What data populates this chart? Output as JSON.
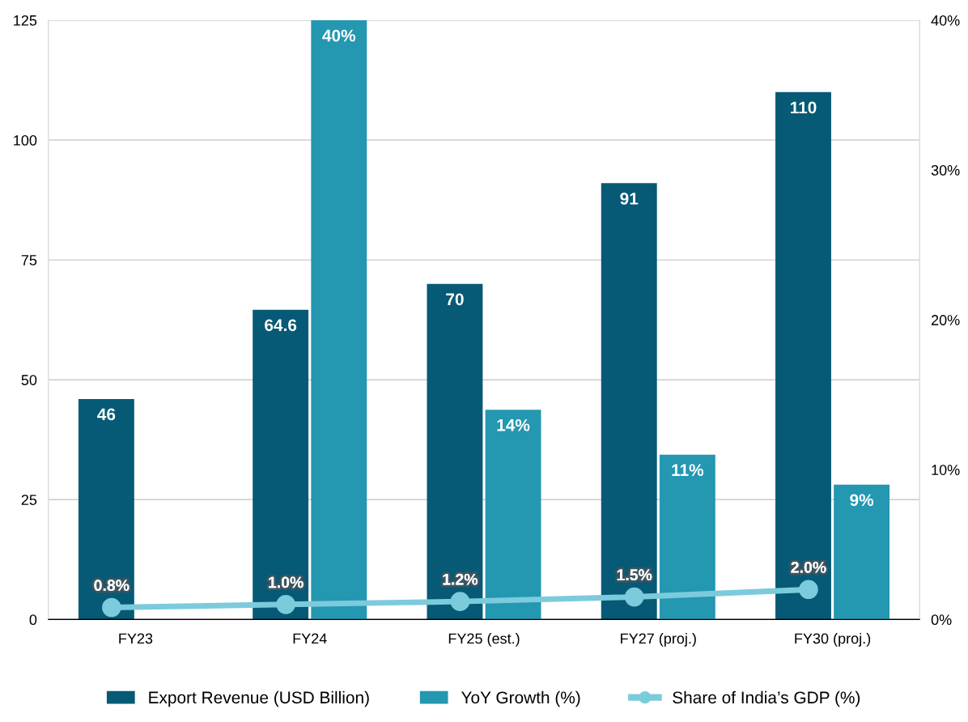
{
  "chart_data": {
    "type": "bar",
    "categories": [
      "FY23",
      "FY24",
      "FY25 (est.)",
      "FY27 (proj.)",
      "FY30 (proj.)"
    ],
    "series": [
      {
        "name": "Export Revenue (USD Billion)",
        "color": "#065a75",
        "values": [
          46,
          64.6,
          70,
          91,
          110
        ],
        "value_labels": [
          "46",
          "64.6",
          "70",
          "91",
          "110"
        ]
      },
      {
        "name": "YoY Growth (%)",
        "color": "#2497b1",
        "axis": "y2",
        "values": [
          null,
          40,
          14,
          11,
          9
        ],
        "value_labels": [
          null,
          "40%",
          "14%",
          "11%",
          "9%"
        ]
      },
      {
        "name": "Share of India’s GDP (%)",
        "type": "line",
        "color": "#7ccbdc",
        "axis": "y2",
        "marker": "circle",
        "values": [
          0.8,
          1.0,
          1.2,
          1.5,
          2.0
        ],
        "value_labels": [
          "0.8%",
          "1.0%",
          "1.2%",
          "1.5%",
          "2.0%"
        ]
      }
    ],
    "ylim": [
      0,
      125
    ],
    "yticks": [
      0,
      25,
      50,
      75,
      100,
      125
    ],
    "y2lim": [
      0,
      40
    ],
    "y2ticks": [
      {
        "value": 0,
        "label": "0%"
      },
      {
        "value": 10,
        "label": "10%"
      },
      {
        "value": 20,
        "label": "20%"
      },
      {
        "value": 30,
        "label": "30%"
      },
      {
        "value": 40,
        "label": "40%"
      }
    ],
    "grid": "y",
    "legend": "bottom"
  }
}
